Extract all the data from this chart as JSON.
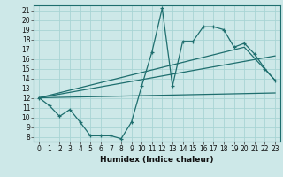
{
  "xlabel": "Humidex (Indice chaleur)",
  "background_color": "#cde8e8",
  "grid_color": "#a8d4d4",
  "line_color": "#1e6e6e",
  "xlim": [
    -0.5,
    23.5
  ],
  "ylim": [
    7.5,
    21.5
  ],
  "xticks": [
    0,
    1,
    2,
    3,
    4,
    5,
    6,
    7,
    8,
    9,
    10,
    11,
    12,
    13,
    14,
    15,
    16,
    17,
    18,
    19,
    20,
    21,
    22,
    23
  ],
  "yticks": [
    8,
    9,
    10,
    11,
    12,
    13,
    14,
    15,
    16,
    17,
    18,
    19,
    20,
    21
  ],
  "main_x": [
    0,
    1,
    2,
    3,
    4,
    5,
    6,
    7,
    8,
    9,
    10,
    11,
    12,
    13,
    14,
    15,
    16,
    17,
    18,
    19,
    20,
    21,
    22,
    23
  ],
  "main_y": [
    12,
    11.2,
    10.1,
    10.8,
    9.5,
    8.1,
    8.1,
    8.1,
    7.8,
    9.5,
    13.2,
    16.7,
    21.2,
    13.2,
    17.8,
    17.8,
    19.3,
    19.3,
    19.0,
    17.2,
    17.6,
    16.5,
    15.0,
    13.8
  ],
  "line1_x": [
    0,
    23
  ],
  "line1_y": [
    12.0,
    12.5
  ],
  "line2_x": [
    0,
    23
  ],
  "line2_y": [
    12.0,
    16.3
  ],
  "line3_x": [
    0,
    20,
    23
  ],
  "line3_y": [
    12.0,
    17.2,
    13.8
  ]
}
